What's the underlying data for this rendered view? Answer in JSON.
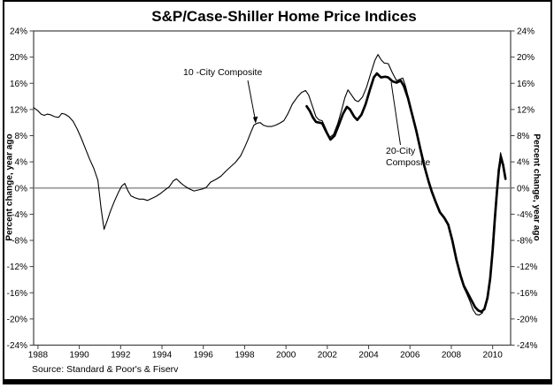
{
  "page": {
    "title": "S&P/Case-Shiller Home Price Indices",
    "source_note": "Source: Standard & Poor's & Fiserv"
  },
  "axes": {
    "left_title": "Percent change, year ago",
    "right_title": "Percent change, year ago"
  },
  "annotations": {
    "ten_city_label": "10 -City Composite",
    "twenty_city_line1": "20-City",
    "twenty_city_line2": "Composite"
  },
  "colors": {
    "line": "#000000",
    "zero_line": "#8f8f8f",
    "frame": "#404040",
    "text": "#000000",
    "background": "#ffffff"
  },
  "chart_data": {
    "type": "line",
    "title": "S&P/Case-Shiller Home Price Indices",
    "xlabel": "",
    "ylabel": "Percent change, year ago",
    "ylim": [
      -24,
      24
    ],
    "xlim": [
      1987.79,
      2010.87
    ],
    "grid": false,
    "zero_line": true,
    "legend_position": "inline-annotations",
    "y_tick_values": [
      24,
      20,
      16,
      12,
      8,
      4,
      0,
      -4,
      -8,
      -12,
      -16,
      -20,
      -24
    ],
    "y_tick_labels": [
      "24%",
      "20%",
      "16%",
      "12%",
      "8%",
      "4%",
      "0%",
      "-4%",
      "-8%",
      "-12%",
      "-16%",
      "-20%",
      "-24%"
    ],
    "x_tick_labels": [
      "1988",
      "1990",
      "1992",
      "1994",
      "1996",
      "1998",
      "2000",
      "2002",
      "2004",
      "2006",
      "2008",
      "2010"
    ],
    "source": "Source: Standard & Poor's & Fiserv",
    "series": [
      {
        "name": "10-City Composite",
        "line_width": "thin",
        "color": "#000000",
        "points": [
          [
            1987.79,
            12.3
          ],
          [
            1988.0,
            11.8
          ],
          [
            1988.15,
            11.3
          ],
          [
            1988.3,
            11.1
          ],
          [
            1988.45,
            11.3
          ],
          [
            1988.6,
            11.2
          ],
          [
            1988.8,
            10.9
          ],
          [
            1989.0,
            10.8
          ],
          [
            1989.15,
            11.4
          ],
          [
            1989.3,
            11.3
          ],
          [
            1989.5,
            10.9
          ],
          [
            1989.7,
            10.2
          ],
          [
            1989.9,
            9.0
          ],
          [
            1990.1,
            7.6
          ],
          [
            1990.3,
            6.0
          ],
          [
            1990.5,
            4.4
          ],
          [
            1990.7,
            3.0
          ],
          [
            1990.9,
            1.2
          ],
          [
            1991.05,
            -3.0
          ],
          [
            1991.2,
            -6.3
          ],
          [
            1991.35,
            -5.0
          ],
          [
            1991.5,
            -3.6
          ],
          [
            1991.7,
            -2.0
          ],
          [
            1991.9,
            -0.6
          ],
          [
            1992.05,
            0.3
          ],
          [
            1992.2,
            0.7
          ],
          [
            1992.35,
            -0.4
          ],
          [
            1992.5,
            -1.2
          ],
          [
            1992.7,
            -1.5
          ],
          [
            1992.9,
            -1.7
          ],
          [
            1993.1,
            -1.7
          ],
          [
            1993.3,
            -1.9
          ],
          [
            1993.5,
            -1.6
          ],
          [
            1993.7,
            -1.3
          ],
          [
            1993.9,
            -0.9
          ],
          [
            1994.1,
            -0.4
          ],
          [
            1994.35,
            0.2
          ],
          [
            1994.55,
            1.1
          ],
          [
            1994.7,
            1.4
          ],
          [
            1994.9,
            0.8
          ],
          [
            1995.1,
            0.3
          ],
          [
            1995.3,
            -0.1
          ],
          [
            1995.55,
            -0.45
          ],
          [
            1995.75,
            -0.3
          ],
          [
            1995.95,
            -0.15
          ],
          [
            1996.15,
            0.1
          ],
          [
            1996.35,
            0.9
          ],
          [
            1996.6,
            1.3
          ],
          [
            1996.85,
            1.8
          ],
          [
            1997.1,
            2.6
          ],
          [
            1997.3,
            3.2
          ],
          [
            1997.55,
            3.9
          ],
          [
            1997.8,
            4.9
          ],
          [
            1998.0,
            6.2
          ],
          [
            1998.15,
            7.3
          ],
          [
            1998.3,
            8.5
          ],
          [
            1998.45,
            9.6
          ],
          [
            1998.6,
            9.9
          ],
          [
            1998.75,
            10.0
          ],
          [
            1998.9,
            9.6
          ],
          [
            1999.1,
            9.4
          ],
          [
            1999.3,
            9.4
          ],
          [
            1999.5,
            9.6
          ],
          [
            1999.7,
            9.9
          ],
          [
            1999.9,
            10.3
          ],
          [
            2000.1,
            11.4
          ],
          [
            2000.3,
            12.8
          ],
          [
            2000.55,
            13.9
          ],
          [
            2000.75,
            14.6
          ],
          [
            2000.95,
            14.9
          ],
          [
            2001.1,
            14.2
          ],
          [
            2001.25,
            12.8
          ],
          [
            2001.45,
            10.9
          ],
          [
            2001.6,
            10.4
          ],
          [
            2001.75,
            10.3
          ],
          [
            2001.95,
            8.9
          ],
          [
            2002.1,
            7.7
          ],
          [
            2002.3,
            8.2
          ],
          [
            2002.5,
            9.8
          ],
          [
            2002.7,
            12.0
          ],
          [
            2002.85,
            13.8
          ],
          [
            2003.0,
            15.0
          ],
          [
            2003.15,
            14.3
          ],
          [
            2003.35,
            13.4
          ],
          [
            2003.5,
            13.2
          ],
          [
            2003.7,
            13.9
          ],
          [
            2003.9,
            15.4
          ],
          [
            2004.1,
            17.5
          ],
          [
            2004.3,
            19.5
          ],
          [
            2004.45,
            20.4
          ],
          [
            2004.6,
            19.6
          ],
          [
            2004.75,
            19.1
          ],
          [
            2004.95,
            19.0
          ],
          [
            2005.15,
            17.6
          ],
          [
            2005.35,
            16.4
          ],
          [
            2005.5,
            16.6
          ],
          [
            2005.65,
            16.8
          ],
          [
            2005.8,
            15.4
          ],
          [
            2006.0,
            12.8
          ],
          [
            2006.2,
            10.2
          ],
          [
            2006.4,
            7.5
          ],
          [
            2006.6,
            5.0
          ],
          [
            2006.8,
            2.3
          ],
          [
            2007.0,
            0.2
          ],
          [
            2007.2,
            -1.8
          ],
          [
            2007.4,
            -3.4
          ],
          [
            2007.6,
            -4.3
          ],
          [
            2007.8,
            -5.3
          ],
          [
            2008.0,
            -7.4
          ],
          [
            2008.2,
            -10.5
          ],
          [
            2008.4,
            -13.2
          ],
          [
            2008.6,
            -15.2
          ],
          [
            2008.75,
            -16.2
          ],
          [
            2008.9,
            -17.3
          ],
          [
            2009.05,
            -18.6
          ],
          [
            2009.2,
            -19.3
          ],
          [
            2009.35,
            -19.4
          ],
          [
            2009.5,
            -19.1
          ],
          [
            2009.65,
            -17.8
          ],
          [
            2009.8,
            -15.5
          ],
          [
            2009.92,
            -12.0
          ],
          [
            2010.02,
            -7.5
          ],
          [
            2010.12,
            -3.0
          ],
          [
            2010.22,
            0.8
          ],
          [
            2010.3,
            3.2
          ],
          [
            2010.38,
            5.4
          ],
          [
            2010.48,
            4.2
          ],
          [
            2010.6,
            2.1
          ]
        ]
      },
      {
        "name": "20-City Composite",
        "line_width": "thick",
        "color": "#000000",
        "points": [
          [
            2001.0,
            12.5
          ],
          [
            2001.15,
            11.8
          ],
          [
            2001.3,
            10.8
          ],
          [
            2001.45,
            10.1
          ],
          [
            2001.6,
            10.0
          ],
          [
            2001.75,
            9.9
          ],
          [
            2001.95,
            8.6
          ],
          [
            2002.15,
            7.4
          ],
          [
            2002.35,
            8.0
          ],
          [
            2002.55,
            9.6
          ],
          [
            2002.75,
            11.3
          ],
          [
            2002.95,
            12.4
          ],
          [
            2003.1,
            12.0
          ],
          [
            2003.3,
            10.9
          ],
          [
            2003.45,
            10.4
          ],
          [
            2003.65,
            11.2
          ],
          [
            2003.85,
            12.8
          ],
          [
            2004.05,
            14.9
          ],
          [
            2004.25,
            16.9
          ],
          [
            2004.4,
            17.5
          ],
          [
            2004.6,
            16.9
          ],
          [
            2004.8,
            17.0
          ],
          [
            2004.95,
            16.9
          ],
          [
            2005.15,
            16.3
          ],
          [
            2005.35,
            16.1
          ],
          [
            2005.55,
            16.4
          ],
          [
            2005.7,
            15.6
          ],
          [
            2005.9,
            13.8
          ],
          [
            2006.1,
            11.3
          ],
          [
            2006.3,
            8.8
          ],
          [
            2006.5,
            6.0
          ],
          [
            2006.7,
            3.3
          ],
          [
            2006.9,
            1.0
          ],
          [
            2007.05,
            -0.5
          ],
          [
            2007.25,
            -2.2
          ],
          [
            2007.45,
            -3.7
          ],
          [
            2007.65,
            -4.5
          ],
          [
            2007.85,
            -5.6
          ],
          [
            2008.05,
            -8.0
          ],
          [
            2008.25,
            -11.0
          ],
          [
            2008.45,
            -13.4
          ],
          [
            2008.6,
            -14.9
          ],
          [
            2008.75,
            -15.8
          ],
          [
            2008.95,
            -17.0
          ],
          [
            2009.15,
            -18.2
          ],
          [
            2009.3,
            -18.7
          ],
          [
            2009.45,
            -18.9
          ],
          [
            2009.6,
            -18.5
          ],
          [
            2009.75,
            -16.8
          ],
          [
            2009.88,
            -13.8
          ],
          [
            2010.0,
            -9.5
          ],
          [
            2010.1,
            -5.0
          ],
          [
            2010.2,
            -0.8
          ],
          [
            2010.3,
            2.8
          ],
          [
            2010.4,
            4.7
          ],
          [
            2010.5,
            3.6
          ],
          [
            2010.62,
            1.4
          ]
        ]
      }
    ]
  }
}
